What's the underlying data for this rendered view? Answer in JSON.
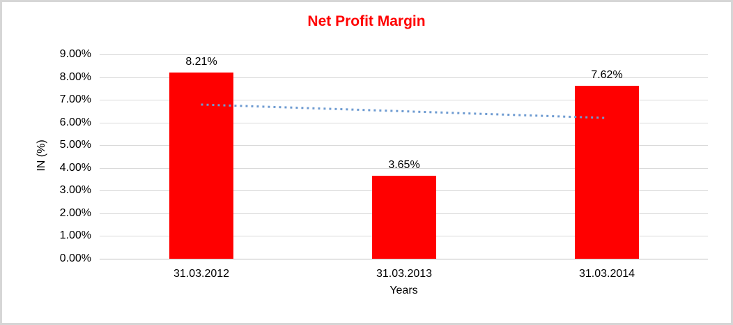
{
  "chart_data": {
    "type": "bar",
    "title": "Net Profit Margin",
    "xlabel": "Years",
    "ylabel": "IN (%)",
    "categories": [
      "31.03.2012",
      "31.03.2013",
      "31.03.2014"
    ],
    "values": [
      8.21,
      3.65,
      7.62
    ],
    "value_labels": [
      "8.21%",
      "3.65%",
      "7.62%"
    ],
    "ylim": [
      0,
      9
    ],
    "ytick_labels": [
      "0.00%",
      "1.00%",
      "2.00%",
      "3.00%",
      "4.00%",
      "5.00%",
      "6.00%",
      "7.00%",
      "8.00%",
      "9.00%"
    ],
    "grid": "horizontal",
    "legend": "none",
    "trendline": {
      "type": "linear",
      "style": "dotted",
      "start_value": 6.79,
      "end_value": 6.2
    },
    "colors": {
      "bar": "#FF0000",
      "title": "#FF0000",
      "gridline": "#D9D9D9",
      "axis_line": "#BFBFBF",
      "trendline": "#6E9BD1",
      "text": "#000000",
      "frame_border": "#D6D6D6",
      "background": "#FFFFFF"
    }
  }
}
